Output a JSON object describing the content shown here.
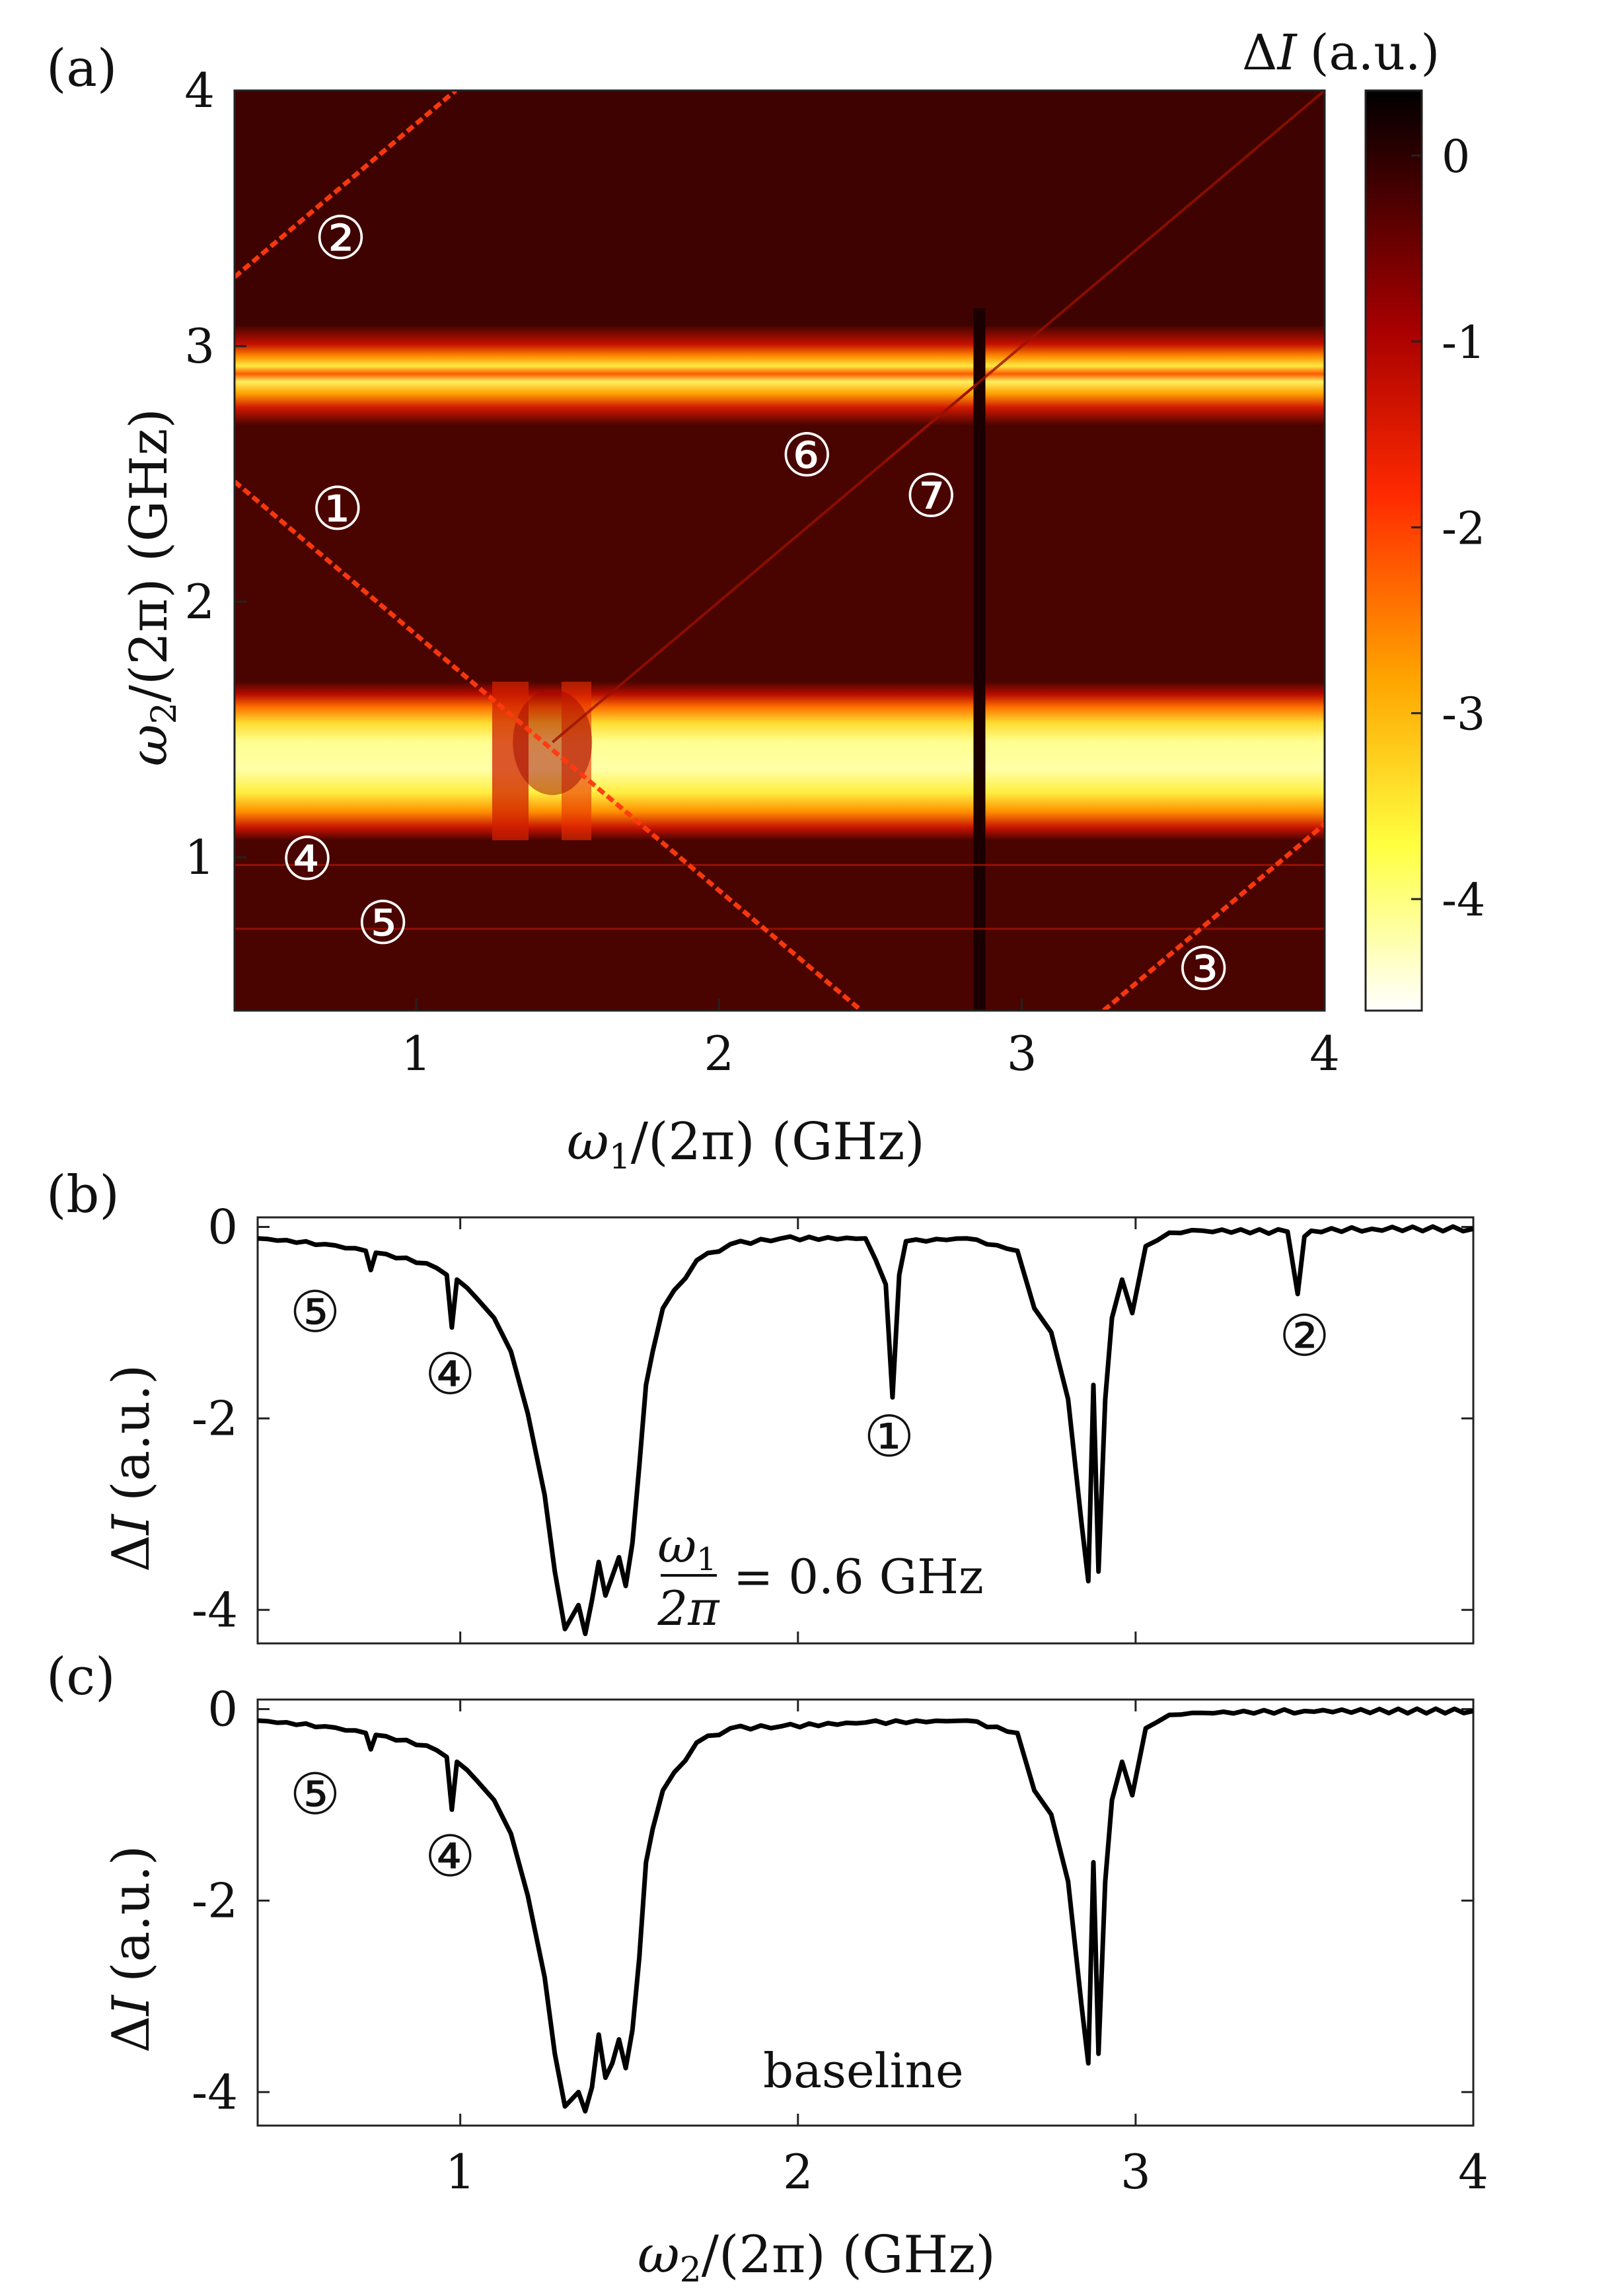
{
  "panels": {
    "a": "(a)",
    "b": "(b)",
    "c": "(c)"
  },
  "markers": {
    "1": "①",
    "2": "②",
    "3": "③",
    "4": "④",
    "5": "⑤",
    "6": "⑥",
    "7": "⑦"
  },
  "chart_data": [
    {
      "panel": "(a)",
      "type": "heatmap",
      "x_label_var": "ω",
      "x_label_sub": "1",
      "x_label_rest": "/(2π) (GHz)",
      "y_label_var": "ω",
      "y_label_sub": "2",
      "y_label_rest": "/(2π) (GHz)",
      "xlim": [
        0.4,
        4.0
      ],
      "ylim": [
        0.4,
        4.0
      ],
      "xticks": [
        "1",
        "2",
        "3",
        "4"
      ],
      "yticks": [
        "1",
        "2",
        "3",
        "4"
      ],
      "colorbar": {
        "title_delta": "Δ",
        "title_var": "I",
        "title_unit": "(a.u.)",
        "range": [
          -4.6,
          0.35
        ],
        "ticks": [
          "0",
          "-1",
          "-2",
          "-3",
          "-4"
        ],
        "colormap": [
          "#ffffff",
          "#ffff40",
          "#ffa500",
          "#ff2a00",
          "#a80000",
          "#400000",
          "#000000"
        ]
      },
      "background_value": -0.45,
      "horizontal_bands": [
        {
          "center": 2.87,
          "width": 0.09,
          "depth": -3.6
        },
        {
          "center": 1.38,
          "width": 0.2,
          "depth": -3.9
        }
      ],
      "vertical_lines": [
        {
          "x": 2.86,
          "type": "dark"
        }
      ],
      "anticrossing": {
        "x": 1.45,
        "y": 1.45
      },
      "diagonal_lines": [
        {
          "label": "①",
          "relation": "ω1 + ω2 = 2.87",
          "x_range": [
            0.4,
            2.47
          ]
        },
        {
          "label": "②",
          "relation": "ω2 - ω1 = 2.87",
          "x_range": [
            0.4,
            1.13
          ]
        },
        {
          "label": "③",
          "relation": "ω1 - ω2 = 2.87",
          "x_range": [
            3.27,
            4.0
          ]
        },
        {
          "label": "⑥",
          "relation": "ω2 = ω1",
          "x_range": [
            1.45,
            4.0
          ]
        },
        {
          "label": "⑦",
          "relation": "ω2 = ω1 (short)",
          "x_range": [
            2.55,
            2.85
          ]
        }
      ],
      "horizontal_lines": [
        {
          "label": "④",
          "y": 0.97
        },
        {
          "label": "⑤",
          "y": 0.72
        }
      ]
    },
    {
      "panel": "(b)",
      "type": "line",
      "ylabel_delta": "Δ",
      "ylabel_var": "I",
      "ylabel_unit": "(a.u.)",
      "annotation_var": "ω",
      "annotation_sub": "1",
      "annotation_den": "2π",
      "annotation_rest": "= 0.6 GHz",
      "xlim": [
        0.4,
        4.0
      ],
      "ylim": [
        -4.35,
        0.1
      ],
      "yticks": [
        "0",
        "-2",
        "-4"
      ],
      "x": [
        0.4,
        0.6,
        0.72,
        0.735,
        0.75,
        0.9,
        0.96,
        0.975,
        0.99,
        1.05,
        1.1,
        1.15,
        1.2,
        1.25,
        1.28,
        1.31,
        1.35,
        1.37,
        1.39,
        1.41,
        1.43,
        1.45,
        1.47,
        1.49,
        1.51,
        1.53,
        1.55,
        1.57,
        1.6,
        1.7,
        1.8,
        1.95,
        2.2,
        2.26,
        2.28,
        2.3,
        2.32,
        2.5,
        2.65,
        2.7,
        2.75,
        2.8,
        2.84,
        2.86,
        2.875,
        2.89,
        2.91,
        2.93,
        2.96,
        2.99,
        3.03,
        3.1,
        3.2,
        3.45,
        3.48,
        3.5,
        3.52,
        3.7,
        4.0
      ],
      "y": [
        -0.12,
        -0.18,
        -0.25,
        -0.45,
        -0.27,
        -0.38,
        -0.5,
        -1.05,
        -0.55,
        -0.75,
        -0.95,
        -1.3,
        -1.95,
        -2.8,
        -3.6,
        -4.2,
        -3.95,
        -4.25,
        -3.9,
        -3.5,
        -3.85,
        -3.65,
        -3.45,
        -3.75,
        -3.3,
        -2.5,
        -1.65,
        -1.3,
        -0.85,
        -0.35,
        -0.18,
        -0.12,
        -0.12,
        -0.6,
        -1.78,
        -0.5,
        -0.15,
        -0.12,
        -0.25,
        -0.85,
        -1.1,
        -1.8,
        -3.1,
        -3.7,
        -1.65,
        -3.6,
        -1.8,
        -0.95,
        -0.55,
        -0.9,
        -0.2,
        -0.06,
        -0.04,
        -0.05,
        -0.7,
        -0.1,
        -0.04,
        -0.02,
        -0.02
      ]
    },
    {
      "panel": "(c)",
      "type": "line",
      "ylabel_delta": "Δ",
      "ylabel_var": "I",
      "ylabel_unit": "(a.u.)",
      "annotation": "baseline",
      "xlabel_var": "ω",
      "xlabel_sub": "2",
      "xlabel_rest": "/(2π) (GHz)",
      "xlim": [
        0.4,
        4.0
      ],
      "ylim": [
        -4.35,
        0.1
      ],
      "xticks": [
        "1",
        "2",
        "3",
        "4"
      ],
      "yticks": [
        "0",
        "-2",
        "-4"
      ],
      "x": [
        0.4,
        0.6,
        0.72,
        0.735,
        0.75,
        0.9,
        0.96,
        0.975,
        0.99,
        1.05,
        1.1,
        1.15,
        1.2,
        1.25,
        1.28,
        1.31,
        1.35,
        1.37,
        1.39,
        1.41,
        1.43,
        1.45,
        1.47,
        1.49,
        1.51,
        1.53,
        1.55,
        1.57,
        1.6,
        1.7,
        1.8,
        1.95,
        2.2,
        2.5,
        2.65,
        2.7,
        2.75,
        2.8,
        2.84,
        2.86,
        2.875,
        2.89,
        2.91,
        2.93,
        2.96,
        2.99,
        3.03,
        3.1,
        3.2,
        3.5,
        4.0
      ],
      "y": [
        -0.12,
        -0.18,
        -0.25,
        -0.42,
        -0.27,
        -0.38,
        -0.5,
        -1.05,
        -0.55,
        -0.75,
        -0.95,
        -1.3,
        -1.95,
        -2.8,
        -3.6,
        -4.15,
        -4.0,
        -4.2,
        -3.95,
        -3.4,
        -3.85,
        -3.7,
        -3.45,
        -3.75,
        -3.35,
        -2.6,
        -1.6,
        -1.25,
        -0.85,
        -0.35,
        -0.2,
        -0.18,
        -0.14,
        -0.12,
        -0.25,
        -0.85,
        -1.1,
        -1.8,
        -3.1,
        -3.7,
        -1.6,
        -3.6,
        -1.8,
        -0.95,
        -0.55,
        -0.9,
        -0.2,
        -0.06,
        -0.04,
        -0.02,
        -0.02
      ]
    }
  ]
}
